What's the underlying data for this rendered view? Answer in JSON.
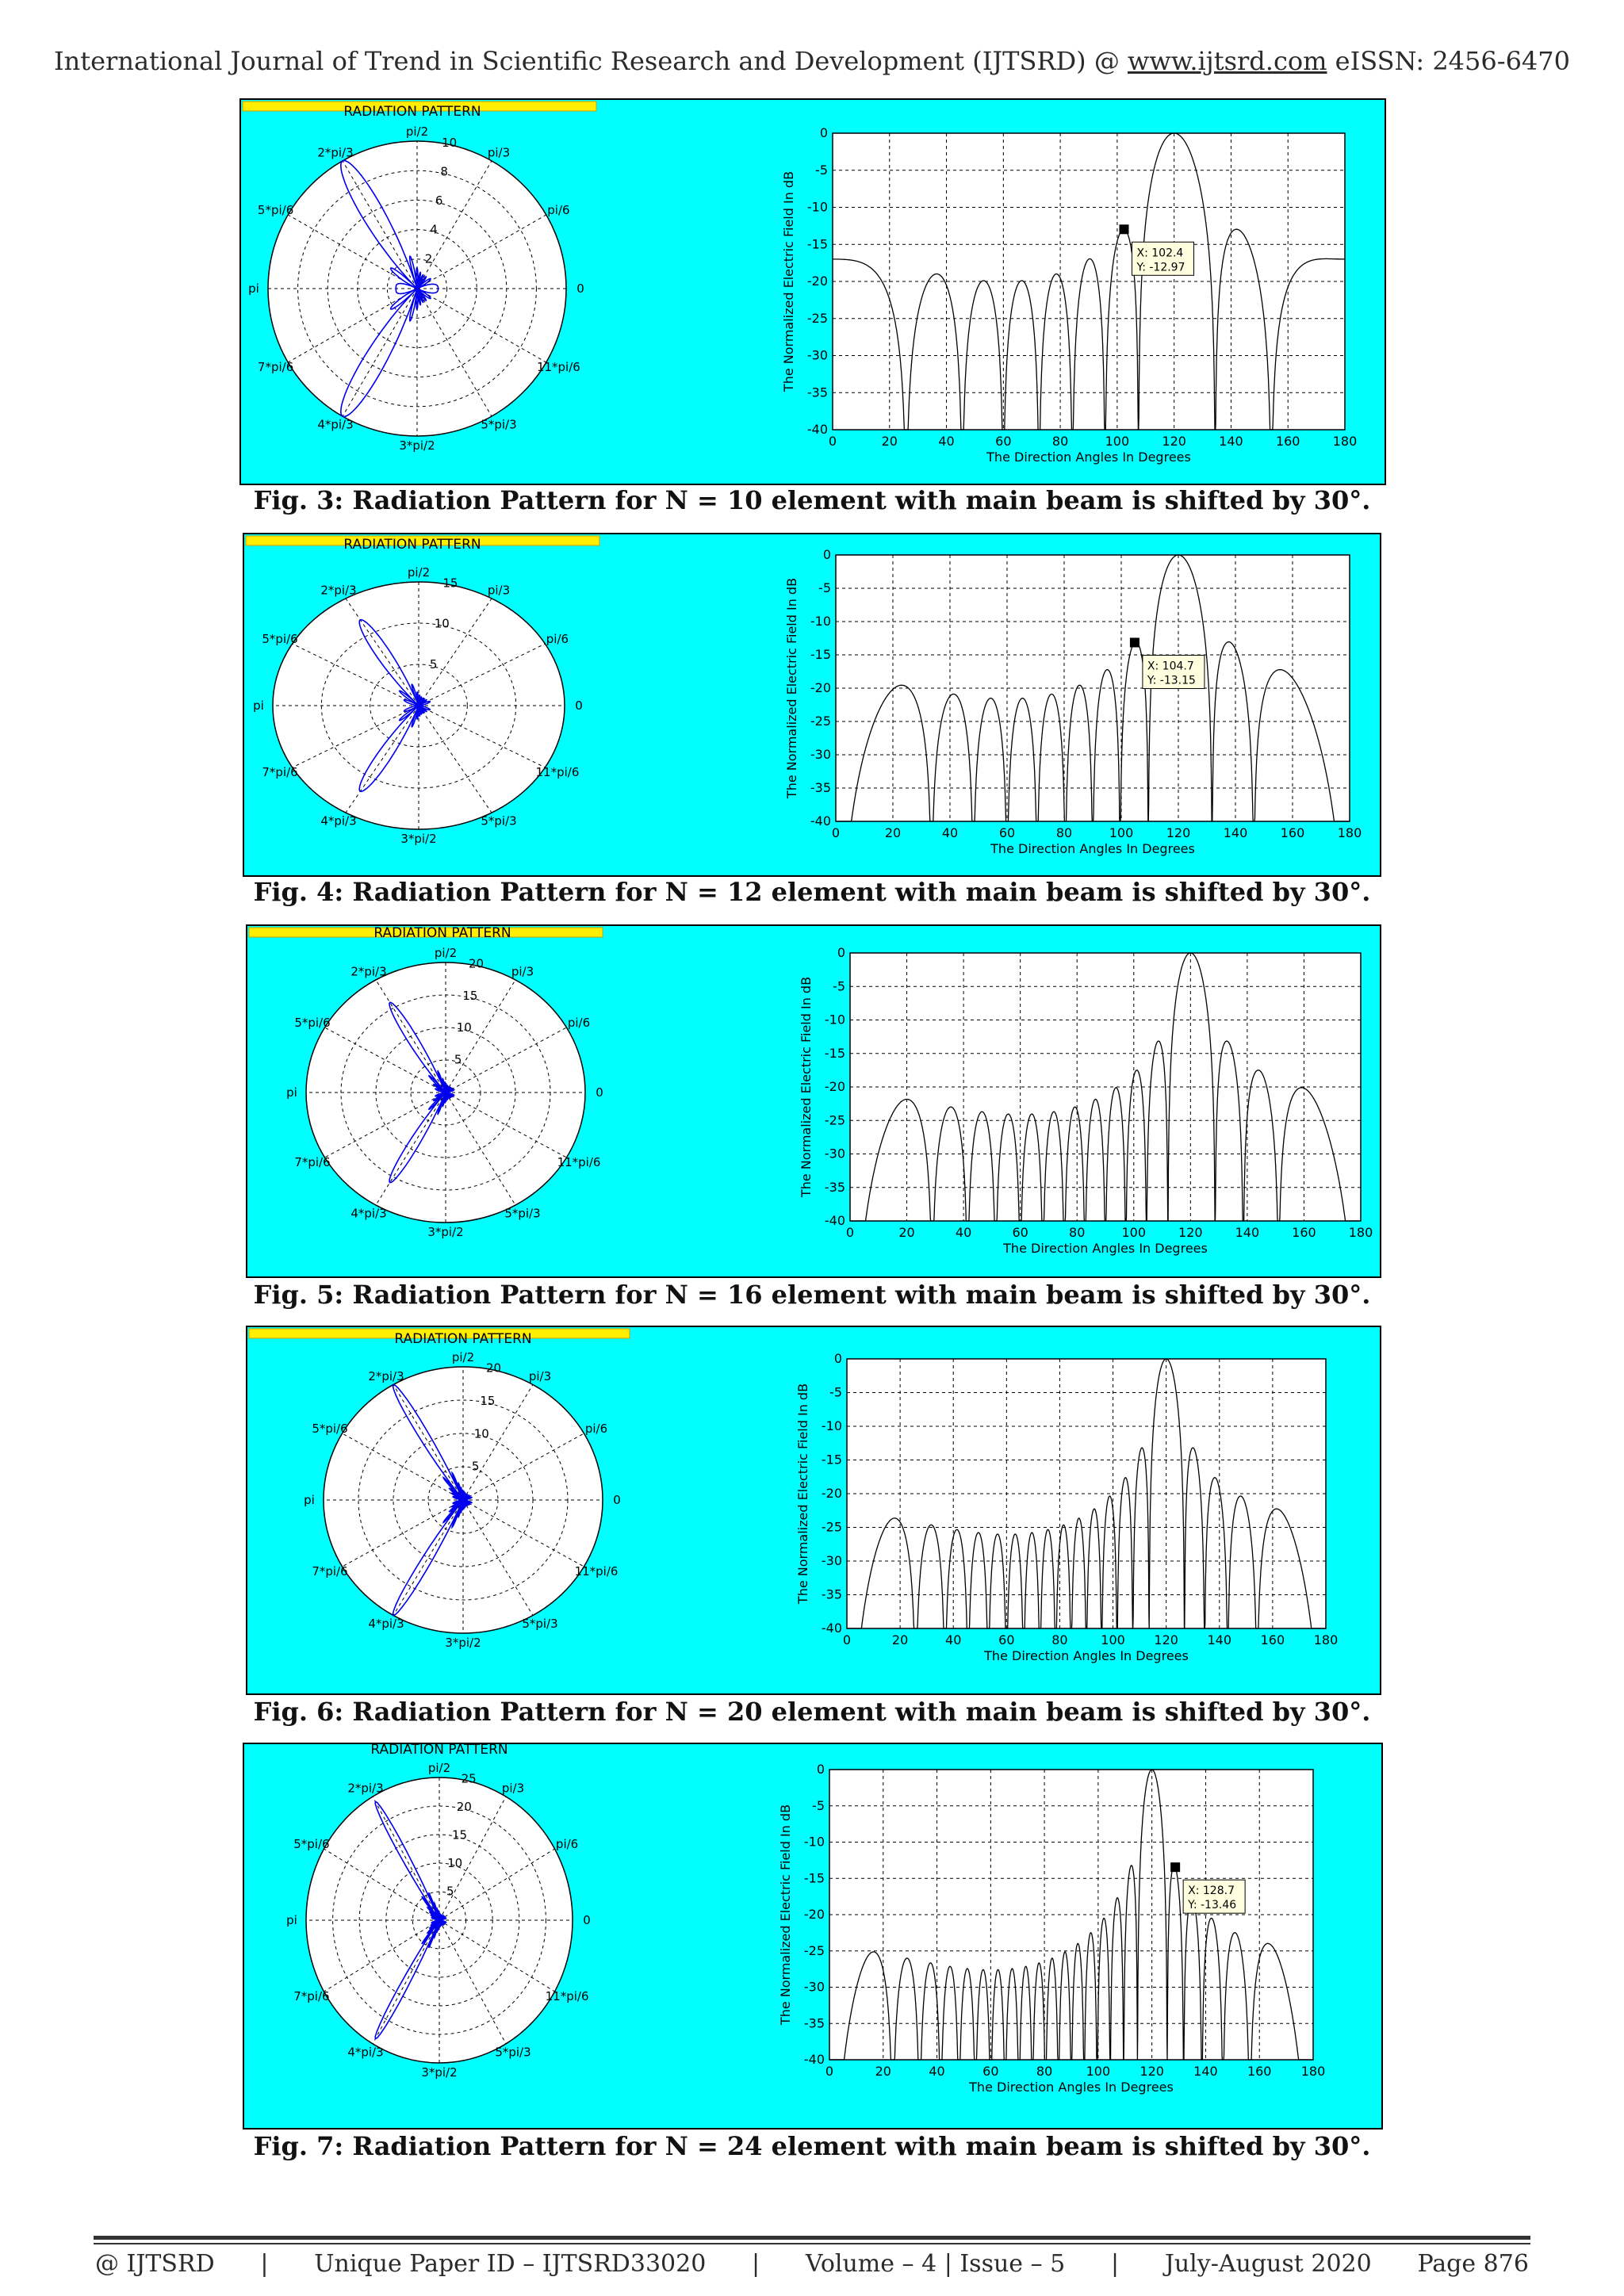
{
  "header": {
    "journal": "International Journal of Trend in Scientific Research and Development (IJTSRD) @ ",
    "url": "www.ijtsrd.com",
    "issn": " eISSN: 2456-6470"
  },
  "polar_common": {
    "title": "RADIATION PATTERN",
    "angle_labels": [
      "pi/2",
      "pi/3",
      "pi/6",
      "0",
      "11*pi/6",
      "5*pi/3",
      "3*pi/2",
      "4*pi/3",
      "7*pi/6",
      "pi",
      "5*pi/6",
      "2*pi/3"
    ]
  },
  "rect_common": {
    "xlabel": "The Direction Angles In Degrees",
    "ylabel": "The Normalized Electric Field In dB"
  },
  "figures": [
    {
      "caption": "Fig. 3: Radiation Pattern for N = 10 element with main beam is shifted by 30°.",
      "radial_ticks": [
        "2",
        "4",
        "6",
        "8",
        "10"
      ],
      "datatip": {
        "x_label": "X: 102.4",
        "y_label": "Y: -12.97"
      }
    },
    {
      "caption": "Fig. 4: Radiation Pattern for N = 12 element with main beam is shifted by 30°.",
      "radial_ticks": [
        "5",
        "10",
        "15"
      ],
      "datatip": {
        "x_label": "X: 104.7",
        "y_label": "Y: -13.15"
      }
    },
    {
      "caption": "Fig. 5: Radiation Pattern for N = 16 element with main beam is shifted by 30°.",
      "radial_ticks": [
        "5",
        "10",
        "15",
        "20"
      ],
      "datatip": null
    },
    {
      "caption": "Fig. 6: Radiation Pattern for N = 20 element with main beam is shifted by 30°.",
      "radial_ticks": [
        "5",
        "10",
        "15",
        "20"
      ],
      "datatip": null
    },
    {
      "caption": "Fig. 7: Radiation Pattern for N = 24 element with main beam is shifted by 30°.",
      "radial_ticks": [
        "5",
        "10",
        "15",
        "20",
        "25"
      ],
      "datatip": {
        "x_label": "X: 128.7",
        "y_label": "Y: -13.46"
      }
    }
  ],
  "chart_data": [
    {
      "type": "line",
      "elements": 10,
      "polar_rmax": 10,
      "xlim": [
        0,
        180
      ],
      "ylim": [
        -40,
        0
      ],
      "xticks": [
        0,
        20,
        40,
        60,
        80,
        100,
        120,
        140,
        160,
        180
      ],
      "yticks": [
        0,
        -5,
        -10,
        -15,
        -20,
        -25,
        -30,
        -35,
        -40
      ],
      "main_beam_deg": 120,
      "series": [
        {
          "x": [
            0,
            180
          ]
        }
      ],
      "datatip": {
        "x": 102.4,
        "y": -12.97
      },
      "grid": true
    },
    {
      "type": "line",
      "elements": 12,
      "polar_rmax": 15,
      "xlim": [
        0,
        180
      ],
      "ylim": [
        -40,
        0
      ],
      "xticks": [
        0,
        20,
        40,
        60,
        80,
        100,
        120,
        140,
        160,
        180
      ],
      "yticks": [
        0,
        -5,
        -10,
        -15,
        -20,
        -25,
        -30,
        -35,
        -40
      ],
      "main_beam_deg": 120,
      "series": [
        {
          "x": [
            0,
            180
          ]
        }
      ],
      "datatip": {
        "x": 104.7,
        "y": -13.15
      },
      "grid": true
    },
    {
      "type": "line",
      "elements": 16,
      "polar_rmax": 20,
      "xlim": [
        0,
        180
      ],
      "ylim": [
        -40,
        0
      ],
      "xticks": [
        0,
        20,
        40,
        60,
        80,
        100,
        120,
        140,
        160,
        180
      ],
      "yticks": [
        0,
        -5,
        -10,
        -15,
        -20,
        -25,
        -30,
        -35,
        -40
      ],
      "main_beam_deg": 120,
      "series": [
        {
          "x": [
            0,
            180
          ]
        }
      ],
      "grid": true
    },
    {
      "type": "line",
      "elements": 20,
      "polar_rmax": 20,
      "xlim": [
        0,
        180
      ],
      "ylim": [
        -40,
        0
      ],
      "xticks": [
        0,
        20,
        40,
        60,
        80,
        100,
        120,
        140,
        160,
        180
      ],
      "yticks": [
        0,
        -5,
        -10,
        -15,
        -20,
        -25,
        -30,
        -35,
        -40
      ],
      "main_beam_deg": 120,
      "series": [
        {
          "x": [
            0,
            180
          ]
        }
      ],
      "grid": true
    },
    {
      "type": "line",
      "elements": 24,
      "polar_rmax": 25,
      "xlim": [
        0,
        180
      ],
      "ylim": [
        -40,
        0
      ],
      "xticks": [
        0,
        20,
        40,
        60,
        80,
        100,
        120,
        140,
        160,
        180
      ],
      "yticks": [
        0,
        -5,
        -10,
        -15,
        -20,
        -25,
        -30,
        -35,
        -40
      ],
      "main_beam_deg": 120,
      "series": [
        {
          "x": [
            0,
            180
          ]
        }
      ],
      "datatip": {
        "x": 128.7,
        "y": -13.46
      },
      "grid": true
    }
  ],
  "footer": {
    "left": "@ IJTSRD",
    "paper_id": "Unique Paper ID – IJTSRD33020",
    "volume": "Volume – 4 | Issue – 5",
    "date": "July-August 2020",
    "page": "Page 876",
    "sep": "|"
  }
}
